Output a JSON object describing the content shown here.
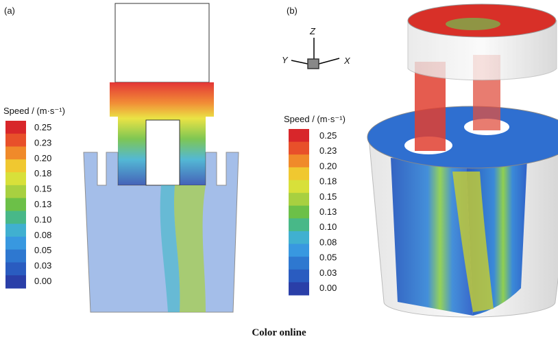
{
  "panel_a": {
    "label": "(a)",
    "legend": {
      "title": "Speed / (m·s⁻¹)",
      "labels": [
        "0.25",
        "0.23",
        "0.20",
        "0.18",
        "0.15",
        "0.13",
        "0.10",
        "0.08",
        "0.05",
        "0.03",
        "0.00"
      ]
    }
  },
  "panel_b": {
    "label": "(b)",
    "legend": {
      "title": "Speed / (m·s⁻¹)",
      "labels": [
        "0.25",
        "0.23",
        "0.20",
        "0.18",
        "0.15",
        "0.13",
        "0.10",
        "0.08",
        "0.05",
        "0.03",
        "0.00"
      ]
    },
    "axes": {
      "z": "Z",
      "y": "Y",
      "x": "X"
    }
  },
  "caption": "Color online"
}
